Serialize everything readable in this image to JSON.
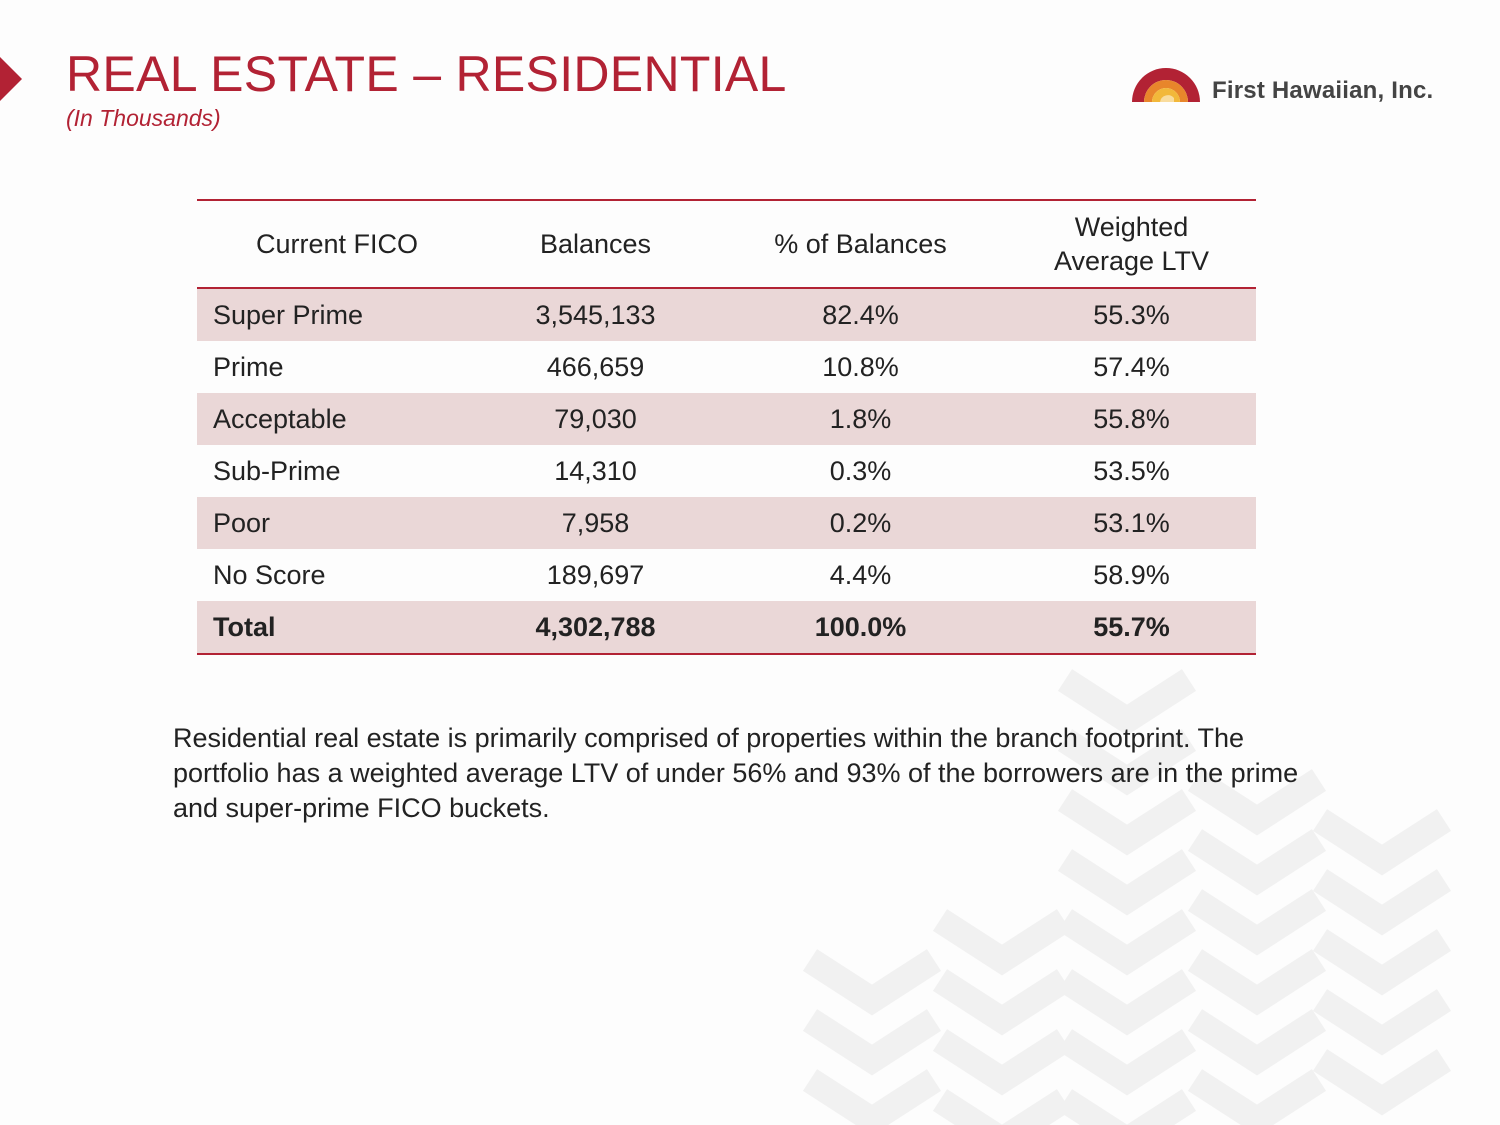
{
  "slide": {
    "title": "REAL ESTATE – RESIDENTIAL",
    "subtitle": "(In Thousands)"
  },
  "logo": {
    "name": "First Hawaiian, Inc.",
    "colors": {
      "red": "#b22234",
      "orange": "#e8862b",
      "yellow": "#f2b83a"
    }
  },
  "table": {
    "headers": [
      "Current FICO",
      "Balances",
      "% of Balances",
      "Weighted\nAverage LTV"
    ],
    "rows": [
      [
        "Super Prime",
        "3,545,133",
        "82.4%",
        "55.3%"
      ],
      [
        "Prime",
        "466,659",
        "10.8%",
        "57.4%"
      ],
      [
        "Acceptable",
        "79,030",
        "1.8%",
        "55.8%"
      ],
      [
        "Sub-Prime",
        "14,310",
        "0.3%",
        "53.5%"
      ],
      [
        "Poor",
        "7,958",
        "0.2%",
        "53.1%"
      ],
      [
        "No Score",
        "189,697",
        "4.4%",
        "58.9%"
      ]
    ],
    "total": [
      "Total",
      "4,302,788",
      "100.0%",
      "55.7%"
    ]
  },
  "summary": "Residential real estate is primarily comprised of properties within the branch footprint. The portfolio has a weighted average LTV of under 56% and 93% of the borrowers are in the prime and super-prime FICO buckets.",
  "theme": {
    "accent": "#b22234",
    "row_shade": "#ead7d7",
    "text": "#222222"
  }
}
